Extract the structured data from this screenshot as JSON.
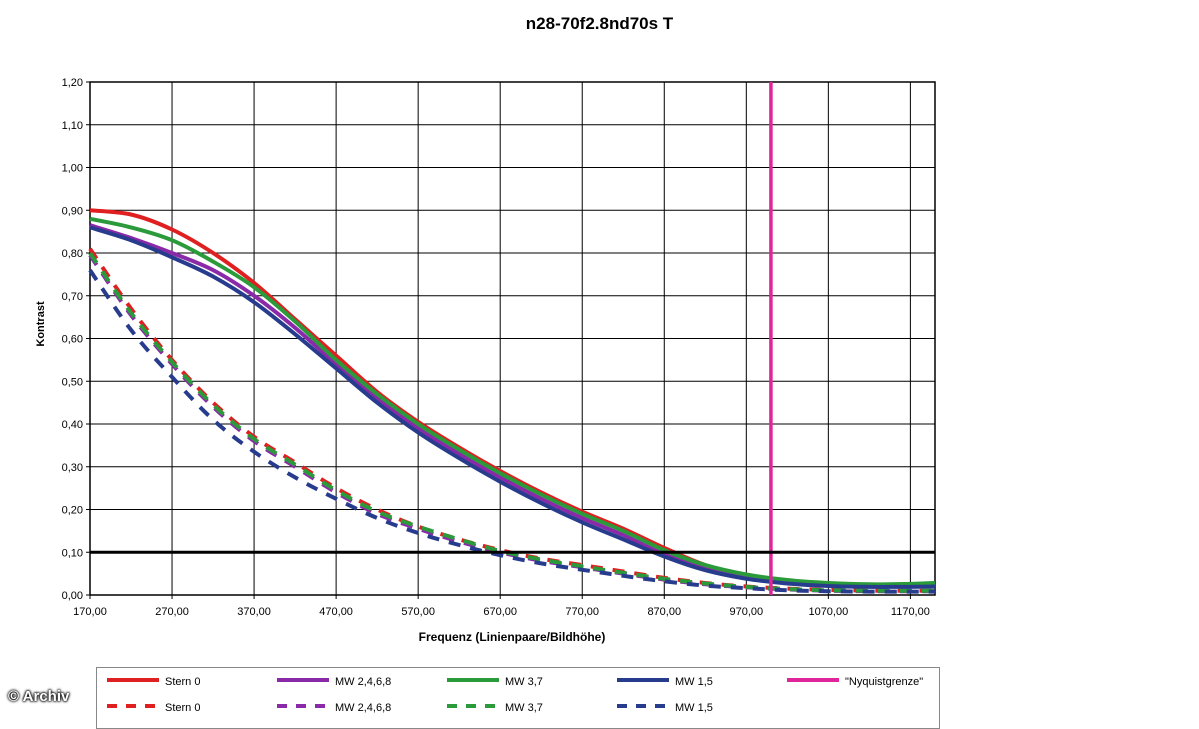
{
  "chart_data": {
    "type": "line",
    "title": "n28-70f2.8nd70s T",
    "xlabel": "Frequenz (Linienpaare/Bildhöhe)",
    "ylabel": "Kontrast",
    "xlim": [
      170,
      1200
    ],
    "ylim": [
      0,
      1.2
    ],
    "x_ticks": [
      "170,00",
      "270,00",
      "370,00",
      "470,00",
      "570,00",
      "670,00",
      "770,00",
      "870,00",
      "970,00",
      "1070,00",
      "1170,00"
    ],
    "y_ticks": [
      "0,00",
      "0,10",
      "0,20",
      "0,30",
      "0,40",
      "0,50",
      "0,60",
      "0,70",
      "0,80",
      "0,90",
      "1,00",
      "1,10",
      "1,20"
    ],
    "x": [
      170,
      220,
      270,
      320,
      370,
      420,
      470,
      520,
      570,
      620,
      670,
      720,
      770,
      820,
      870,
      920,
      970,
      1020,
      1070,
      1120,
      1170,
      1200
    ],
    "series": [
      {
        "name": "Stern 0",
        "style": "solid",
        "color": "#e02020",
        "values": [
          0.9,
          0.89,
          0.855,
          0.8,
          0.73,
          0.645,
          0.56,
          0.475,
          0.405,
          0.345,
          0.29,
          0.24,
          0.195,
          0.155,
          0.11,
          0.07,
          0.045,
          0.032,
          0.025,
          0.022,
          0.023,
          0.025
        ]
      },
      {
        "name": "MW 2,4,6,8",
        "style": "solid",
        "color": "#8a2aa8",
        "values": [
          0.865,
          0.835,
          0.8,
          0.76,
          0.7,
          0.625,
          0.54,
          0.46,
          0.39,
          0.33,
          0.275,
          0.225,
          0.18,
          0.14,
          0.095,
          0.062,
          0.04,
          0.028,
          0.022,
          0.02,
          0.021,
          0.022
        ]
      },
      {
        "name": "MW 3,7",
        "style": "solid",
        "color": "#2a9a3a",
        "values": [
          0.88,
          0.86,
          0.83,
          0.78,
          0.72,
          0.64,
          0.55,
          0.47,
          0.4,
          0.34,
          0.285,
          0.235,
          0.19,
          0.15,
          0.105,
          0.07,
          0.048,
          0.035,
          0.028,
          0.025,
          0.026,
          0.028
        ]
      },
      {
        "name": "MW 1,5",
        "style": "solid",
        "color": "#283c8e",
        "values": [
          0.86,
          0.83,
          0.79,
          0.745,
          0.685,
          0.61,
          0.53,
          0.45,
          0.38,
          0.32,
          0.265,
          0.215,
          0.17,
          0.13,
          0.09,
          0.058,
          0.038,
          0.027,
          0.021,
          0.019,
          0.019,
          0.02
        ]
      },
      {
        "name": "Stern 0",
        "style": "dashed",
        "color": "#e02020",
        "values": [
          0.81,
          0.67,
          0.55,
          0.45,
          0.37,
          0.31,
          0.25,
          0.2,
          0.16,
          0.13,
          0.105,
          0.085,
          0.07,
          0.055,
          0.04,
          0.028,
          0.02,
          0.015,
          0.012,
          0.01,
          0.01,
          0.01
        ]
      },
      {
        "name": "MW 2,4,6,8",
        "style": "dashed",
        "color": "#8a2aa8",
        "values": [
          0.795,
          0.655,
          0.54,
          0.44,
          0.36,
          0.3,
          0.24,
          0.19,
          0.155,
          0.125,
          0.1,
          0.08,
          0.065,
          0.05,
          0.036,
          0.025,
          0.018,
          0.013,
          0.01,
          0.009,
          0.009,
          0.009
        ]
      },
      {
        "name": "MW 3,7",
        "style": "dashed",
        "color": "#2a9a3a",
        "values": [
          0.8,
          0.66,
          0.545,
          0.445,
          0.365,
          0.305,
          0.245,
          0.195,
          0.16,
          0.13,
          0.103,
          0.083,
          0.067,
          0.052,
          0.038,
          0.027,
          0.019,
          0.014,
          0.011,
          0.01,
          0.01,
          0.01
        ]
      },
      {
        "name": "MW 1,5",
        "style": "dashed",
        "color": "#283c8e",
        "values": [
          0.76,
          0.62,
          0.51,
          0.41,
          0.335,
          0.275,
          0.225,
          0.18,
          0.145,
          0.117,
          0.093,
          0.074,
          0.059,
          0.045,
          0.032,
          0.022,
          0.016,
          0.011,
          0.009,
          0.008,
          0.008,
          0.008
        ]
      }
    ],
    "reference_lines": [
      {
        "name": "\"Nyquistgrenze\"",
        "orientation": "vertical",
        "x": 1000,
        "color": "#e0249a"
      },
      {
        "orientation": "horizontal",
        "y": 0.1,
        "color": "#000000"
      }
    ],
    "grid": true,
    "legend_position": "bottom"
  },
  "legend": {
    "row1": [
      "Stern 0",
      "MW 2,4,6,8",
      "MW 3,7",
      "MW 1,5",
      "\"Nyquistgrenze\""
    ],
    "row2": [
      "Stern 0",
      "MW 2,4,6,8",
      "MW 3,7",
      "MW 1,5"
    ]
  },
  "watermark": "© Archiv"
}
